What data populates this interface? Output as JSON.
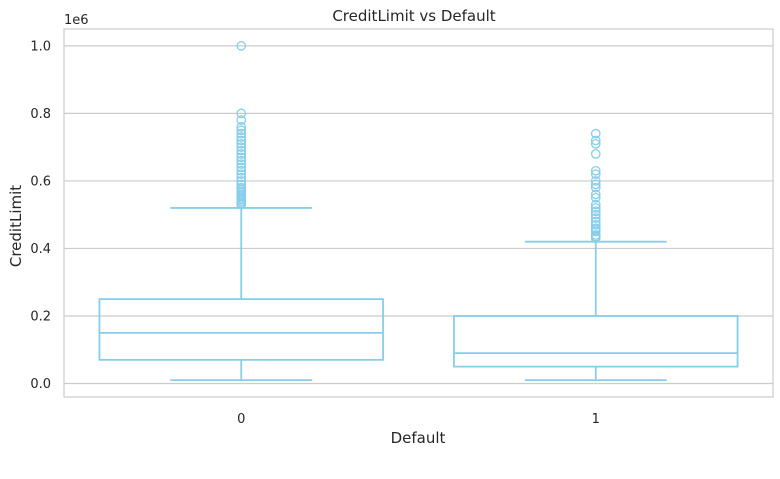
{
  "chart_data": {
    "type": "box",
    "title": "CreditLimit vs Default",
    "xlabel": "Default",
    "ylabel": "CreditLimit",
    "y_offset_label": "1e6",
    "categories": [
      "0",
      "1"
    ],
    "ylim": [
      -0.04,
      1.05
    ],
    "y_ticks": [
      0.0,
      0.2,
      0.4,
      0.6,
      0.8,
      1.0
    ],
    "y_tick_labels": [
      "0.0",
      "0.2",
      "0.4",
      "0.6",
      "0.8",
      "1.0"
    ],
    "grid": true,
    "color": "#87CEEB",
    "boxes": [
      {
        "category": "0",
        "whisker_low": 0.01,
        "q1": 0.07,
        "median": 0.15,
        "q3": 0.25,
        "whisker_high": 0.52,
        "outliers": [
          0.53,
          0.535,
          0.54,
          0.545,
          0.55,
          0.555,
          0.56,
          0.565,
          0.57,
          0.575,
          0.58,
          0.59,
          0.6,
          0.61,
          0.62,
          0.63,
          0.64,
          0.65,
          0.66,
          0.67,
          0.68,
          0.69,
          0.7,
          0.71,
          0.72,
          0.73,
          0.74,
          0.75,
          0.76,
          0.78,
          0.8,
          1.0
        ]
      },
      {
        "category": "1",
        "whisker_low": 0.01,
        "q1": 0.05,
        "median": 0.09,
        "q3": 0.2,
        "whisker_high": 0.42,
        "outliers": [
          0.43,
          0.435,
          0.44,
          0.45,
          0.455,
          0.46,
          0.47,
          0.48,
          0.49,
          0.5,
          0.51,
          0.52,
          0.53,
          0.55,
          0.56,
          0.58,
          0.59,
          0.6,
          0.62,
          0.63,
          0.68,
          0.71,
          0.72,
          0.74
        ]
      }
    ]
  }
}
